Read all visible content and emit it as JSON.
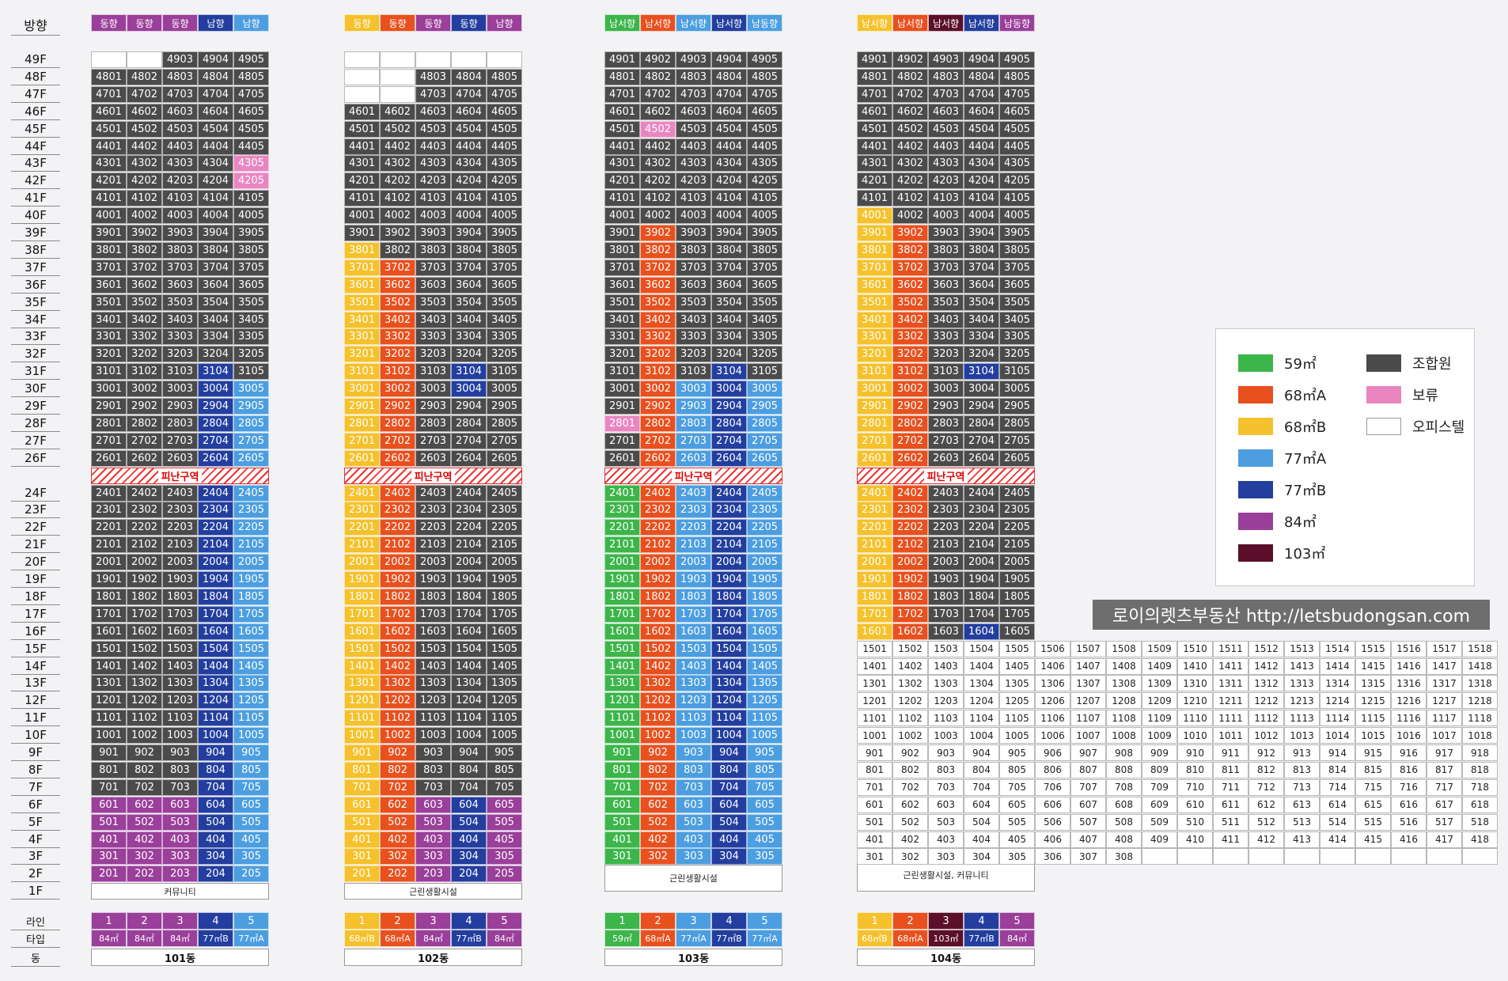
{
  "labels": {
    "direction": "방향",
    "line": "라인",
    "type": "타입",
    "dong": "동",
    "evacuation": "피난구역"
  },
  "colors": {
    "59": "#3cb54a",
    "68A": "#e8501e",
    "68B": "#f5c12c",
    "77A": "#4c9ee0",
    "77B": "#233e9e",
    "84": "#9a3f9a",
    "103": "#5b0f2a",
    "union": "#4b4b4b",
    "hold": "#e986c1",
    "office": "#ffffff"
  },
  "floor_labels": [
    "49F",
    "48F",
    "47F",
    "46F",
    "45F",
    "44F",
    "43F",
    "42F",
    "41F",
    "40F",
    "39F",
    "38F",
    "37F",
    "36F",
    "35F",
    "34F",
    "33F",
    "32F",
    "31F",
    "30F",
    "29F",
    "28F",
    "27F",
    "26F",
    "24F",
    "23F",
    "22F",
    "21F",
    "20F",
    "19F",
    "18F",
    "17F",
    "16F",
    "15F",
    "14F",
    "13F",
    "12F",
    "11F",
    "10F",
    "9F",
    "8F",
    "7F",
    "6F",
    "5F",
    "4F",
    "3F",
    "2F",
    "1F"
  ],
  "buildings": [
    {
      "name": "101동",
      "directions": [
        "동향",
        "동향",
        "동향",
        "남향",
        "남향"
      ],
      "line_numbers": [
        "1",
        "2",
        "3",
        "4",
        "5"
      ],
      "types": [
        "84㎡",
        "84㎡",
        "84㎡",
        "77㎡B",
        "77㎡A"
      ],
      "facility": "커뮤니티",
      "holds": [
        "4305",
        "4205"
      ]
    },
    {
      "name": "102동",
      "directions": [
        "동향",
        "동향",
        "동향",
        "동향",
        "남향"
      ],
      "line_numbers": [
        "1",
        "2",
        "3",
        "4",
        "5"
      ],
      "types": [
        "68㎡B",
        "68㎡A",
        "84㎡",
        "77㎡B",
        "84㎡"
      ],
      "facility": "근린생활시설",
      "holds": []
    },
    {
      "name": "103동",
      "directions": [
        "남서향",
        "남서향",
        "남서향",
        "남서향",
        "남동향"
      ],
      "line_numbers": [
        "1",
        "2",
        "3",
        "4",
        "5"
      ],
      "types": [
        "59㎡",
        "68㎡A",
        "77㎡A",
        "77㎡B",
        "77㎡A"
      ],
      "facility": "근린생활시설",
      "holds": [
        "4502",
        "2801"
      ]
    },
    {
      "name": "104동",
      "directions": [
        "남서향",
        "남서향",
        "남서향",
        "남서향",
        "남동향"
      ],
      "line_numbers": [
        "1",
        "2",
        "3",
        "4",
        "5"
      ],
      "types": [
        "68㎡B",
        "68㎡A",
        "103㎡",
        "77㎡B",
        "84㎡"
      ],
      "facility": "근린생활시설, 커뮤니티",
      "holds": []
    }
  ],
  "legend": [
    {
      "label": "59㎡",
      "key": "59"
    },
    {
      "label": "조합원",
      "key": "union"
    },
    {
      "label": "68㎡A",
      "key": "68A"
    },
    {
      "label": "보류",
      "key": "hold"
    },
    {
      "label": "68㎡B",
      "key": "68B"
    },
    {
      "label": "오피스텔",
      "key": "office"
    },
    {
      "label": "77㎡A",
      "key": "77A"
    },
    {
      "label": "77㎡B",
      "key": "77B"
    },
    {
      "label": "84㎡",
      "key": "84"
    },
    {
      "label": "103㎡",
      "key": "103"
    }
  ],
  "brand": "로이의렛츠부동산 http://letsbudongsan.com"
}
